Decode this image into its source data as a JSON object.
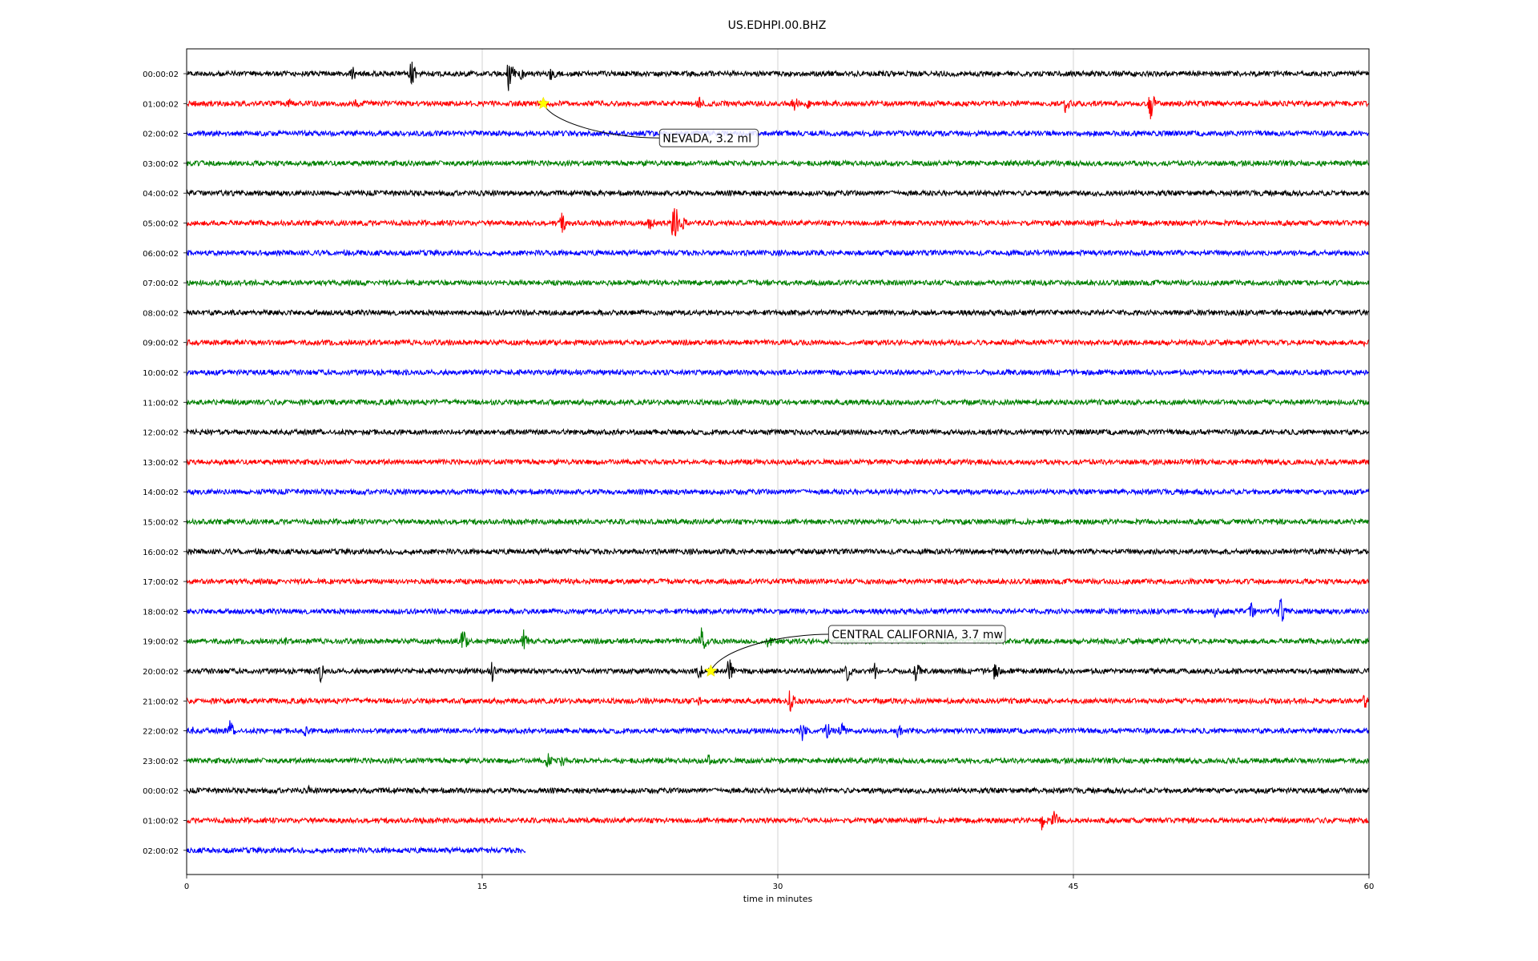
{
  "chart_data": {
    "type": "line",
    "title": "US.EDHPI.00.BHZ",
    "xlabel": "time in minutes",
    "ylabel": "",
    "xlim": [
      0,
      60
    ],
    "xticks": [
      0,
      15,
      30,
      45,
      60
    ],
    "grid": "vertical",
    "series_colors": [
      "#000000",
      "#ff0000",
      "#0000ff",
      "#008000"
    ],
    "rows": [
      {
        "label": "00:00:02",
        "end_min": 60,
        "events": [
          [
            8.4,
            0.6
          ],
          [
            11.4,
            1.0
          ],
          [
            16.3,
            1.4
          ],
          [
            17.0,
            0.5
          ],
          [
            18.5,
            0.7
          ]
        ]
      },
      {
        "label": "01:00:02",
        "end_min": 60,
        "events": [
          [
            5.2,
            0.4
          ],
          [
            8.6,
            0.4
          ],
          [
            26.0,
            0.5
          ],
          [
            30.8,
            0.7
          ],
          [
            31.5,
            0.5
          ],
          [
            44.6,
            0.7
          ],
          [
            48.9,
            1.2
          ]
        ]
      },
      {
        "label": "02:00:02",
        "end_min": 60,
        "events": []
      },
      {
        "label": "03:00:02",
        "end_min": 60,
        "events": []
      },
      {
        "label": "04:00:02",
        "end_min": 60,
        "events": []
      },
      {
        "label": "05:00:02",
        "end_min": 60,
        "events": [
          [
            19.0,
            0.9
          ],
          [
            23.5,
            0.6
          ],
          [
            24.7,
            1.9
          ],
          [
            25.2,
            0.6
          ]
        ]
      },
      {
        "label": "06:00:02",
        "end_min": 60,
        "events": []
      },
      {
        "label": "07:00:02",
        "end_min": 60,
        "events": [
          [
            29.5,
            0.3
          ]
        ]
      },
      {
        "label": "08:00:02",
        "end_min": 60,
        "events": []
      },
      {
        "label": "09:00:02",
        "end_min": 60,
        "events": [
          [
            59.8,
            0.4
          ]
        ]
      },
      {
        "label": "10:00:02",
        "end_min": 60,
        "events": []
      },
      {
        "label": "11:00:02",
        "end_min": 60,
        "events": []
      },
      {
        "label": "12:00:02",
        "end_min": 60,
        "events": []
      },
      {
        "label": "13:00:02",
        "end_min": 60,
        "events": []
      },
      {
        "label": "14:00:02",
        "end_min": 60,
        "events": []
      },
      {
        "label": "15:00:02",
        "end_min": 60,
        "events": []
      },
      {
        "label": "16:00:02",
        "end_min": 60,
        "events": []
      },
      {
        "label": "17:00:02",
        "end_min": 60,
        "events": []
      },
      {
        "label": "18:00:02",
        "end_min": 60,
        "events": [
          [
            52.2,
            0.4
          ],
          [
            54.0,
            0.7
          ],
          [
            55.5,
            1.0
          ]
        ]
      },
      {
        "label": "19:00:02",
        "end_min": 60,
        "events": [
          [
            5.0,
            0.3
          ],
          [
            14.0,
            0.9
          ],
          [
            17.1,
            1.0
          ],
          [
            26.1,
            1.1
          ],
          [
            29.5,
            0.8
          ]
        ]
      },
      {
        "label": "20:00:02",
        "end_min": 60,
        "events": [
          [
            6.8,
            0.8
          ],
          [
            15.5,
            0.7
          ],
          [
            26.0,
            0.6
          ],
          [
            27.5,
            1.0
          ],
          [
            33.5,
            0.7
          ],
          [
            34.9,
            0.7
          ],
          [
            37.0,
            0.7
          ],
          [
            41.0,
            0.7
          ]
        ]
      },
      {
        "label": "21:00:02",
        "end_min": 60,
        "events": [
          [
            26.0,
            0.4
          ],
          [
            30.6,
            0.8
          ],
          [
            59.8,
            0.8
          ]
        ]
      },
      {
        "label": "22:00:02",
        "end_min": 60,
        "events": [
          [
            0.3,
            0.3
          ],
          [
            2.2,
            0.7
          ],
          [
            6.0,
            0.5
          ],
          [
            31.2,
            0.8
          ],
          [
            32.5,
            0.7
          ],
          [
            33.2,
            0.8
          ],
          [
            36.1,
            0.5
          ],
          [
            55.9,
            0.2
          ]
        ]
      },
      {
        "label": "23:00:02",
        "end_min": 60,
        "events": [
          [
            18.3,
            0.7
          ],
          [
            19.0,
            0.6
          ],
          [
            26.5,
            0.5
          ],
          [
            27.2,
            0.3
          ]
        ]
      },
      {
        "label": "00:00:02",
        "end_min": 60,
        "events": [
          [
            6.2,
            0.3
          ],
          [
            10.2,
            0.3
          ]
        ]
      },
      {
        "label": "01:00:02",
        "end_min": 60,
        "events": [
          [
            43.4,
            0.7
          ],
          [
            44.0,
            0.8
          ]
        ]
      },
      {
        "label": "02:00:02",
        "end_min": 17.2,
        "events": []
      }
    ],
    "annotations": [
      {
        "text": "NEVADA, 3.2 ml",
        "row": 1,
        "x_min": 18.1
      },
      {
        "text": "CENTRAL CALIFORNIA, 3.7 mw",
        "row": 20,
        "x_min": 26.6
      }
    ]
  }
}
